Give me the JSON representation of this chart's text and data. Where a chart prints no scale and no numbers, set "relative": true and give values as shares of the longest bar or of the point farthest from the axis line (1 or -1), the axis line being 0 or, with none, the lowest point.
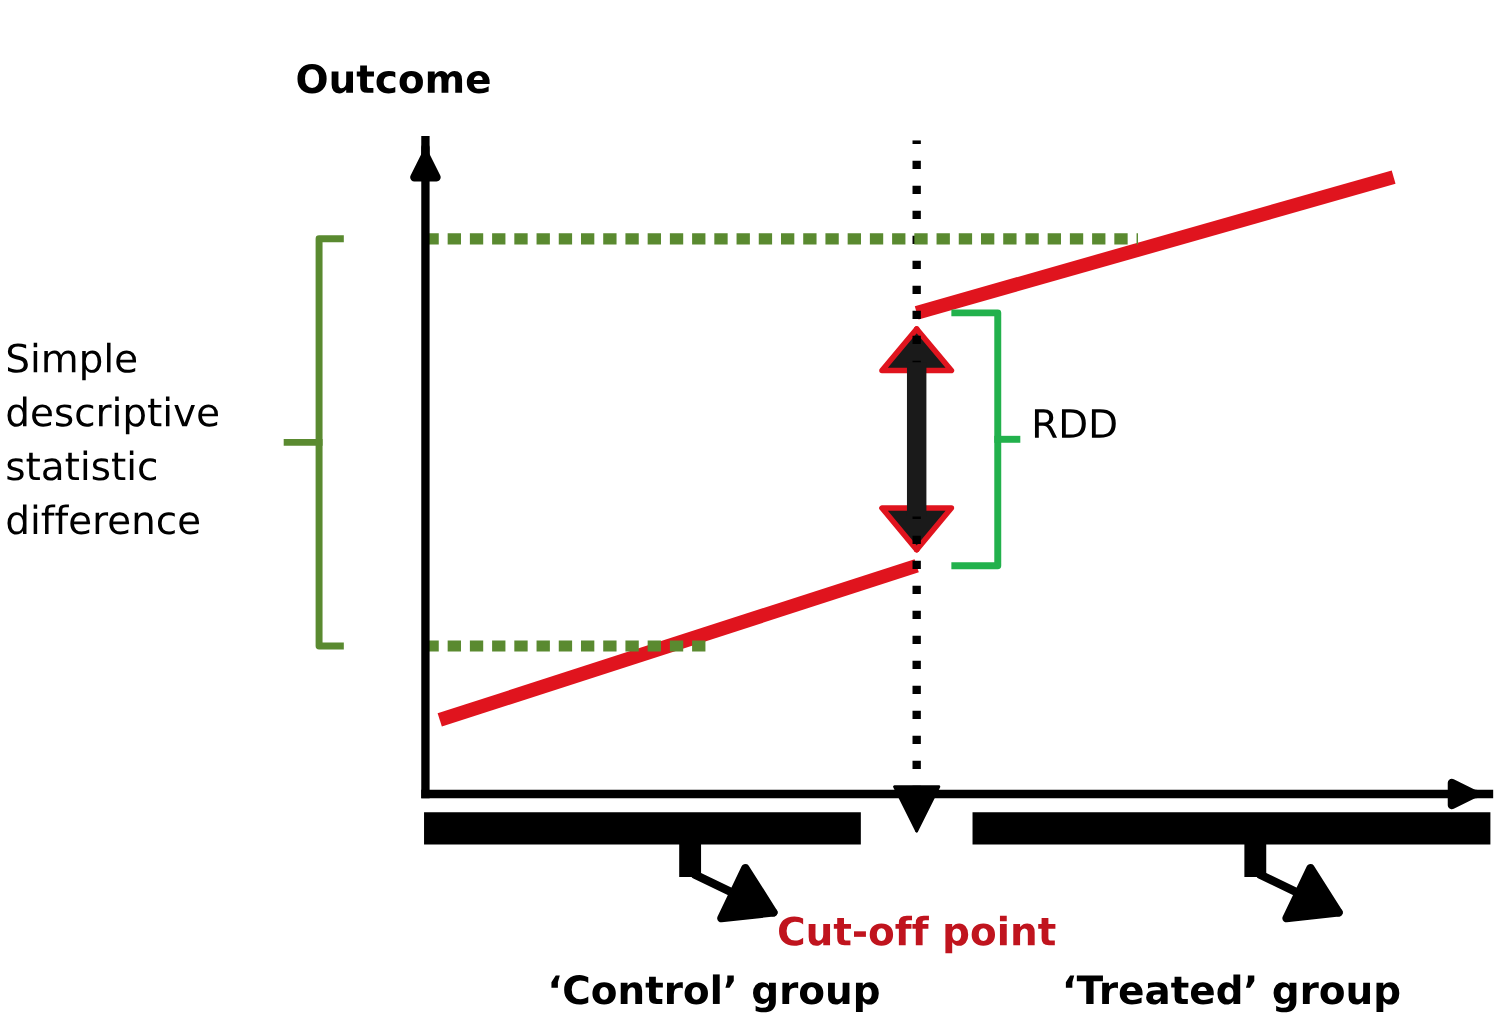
{
  "chart_data": {
    "type": "line",
    "relative": true,
    "ylabel": "Outcome",
    "categories": [
      null,
      null,
      null
    ],
    "series": [
      {
        "color": "#e0141e",
        "values": [
          0.12,
          0.37,
          null
        ]
      },
      {
        "color": "#e0141e",
        "values": [
          null,
          0.78,
          1.0
        ]
      }
    ],
    "ref_lines": [
      {
        "axis": "y",
        "value": 0.9,
        "label": null,
        "color": "#5a8a30",
        "line_style": "dashed"
      },
      {
        "axis": "y",
        "value": 0.24,
        "label": null,
        "color": "#5a8a30",
        "line_style": "dashed"
      }
    ],
    "annotations": [
      "Simple descriptive statistic difference",
      "RDD",
      "‘Control’ group",
      "‘Treated’ group",
      "Cut-off point"
    ],
    "legend": false,
    "marker": "none",
    "line_style": "solid",
    "tick_labels": false
  }
}
